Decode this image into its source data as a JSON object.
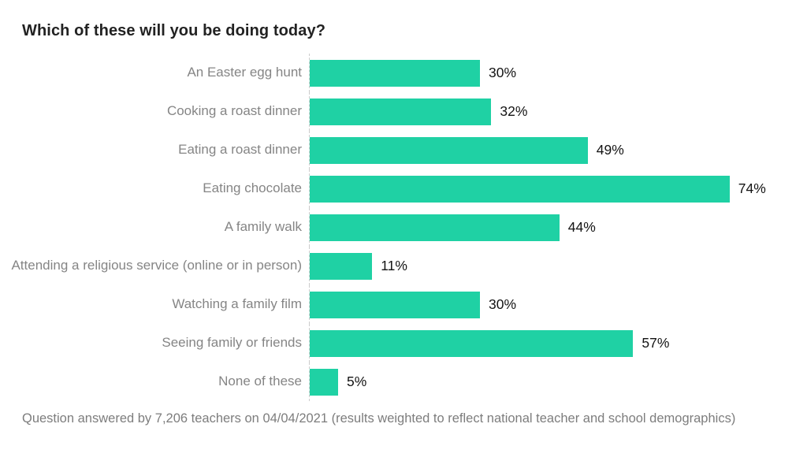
{
  "chart_data": {
    "type": "bar",
    "orientation": "horizontal",
    "title": "Which of these will you be doing today?",
    "categories": [
      "An Easter egg hunt",
      "Cooking a roast dinner",
      "Eating a roast dinner",
      "Eating chocolate",
      "A family walk",
      "Attending a religious service (online or in person)",
      "Watching a family film",
      "Seeing family or friends",
      "None of these"
    ],
    "values": [
      30,
      32,
      49,
      74,
      44,
      11,
      30,
      57,
      5
    ],
    "value_suffix": "%",
    "xlabel": "",
    "ylabel": "",
    "xlim": [
      0,
      80
    ],
    "grid": false,
    "legend": false,
    "value_labels_position": "outside-end",
    "bar_color": "#1fd1a4"
  },
  "footer": {
    "note": "Question answered by 7,206 teachers on 04/04/2021 (results weighted to reflect national teacher and school demographics)"
  },
  "colors": {
    "bar": "#1fd1a4",
    "title_text": "#222222",
    "category_text": "#858585",
    "value_text": "#141414",
    "footer_text": "#7d7d7d",
    "axis_line": "#cccccc",
    "background": "#ffffff"
  }
}
